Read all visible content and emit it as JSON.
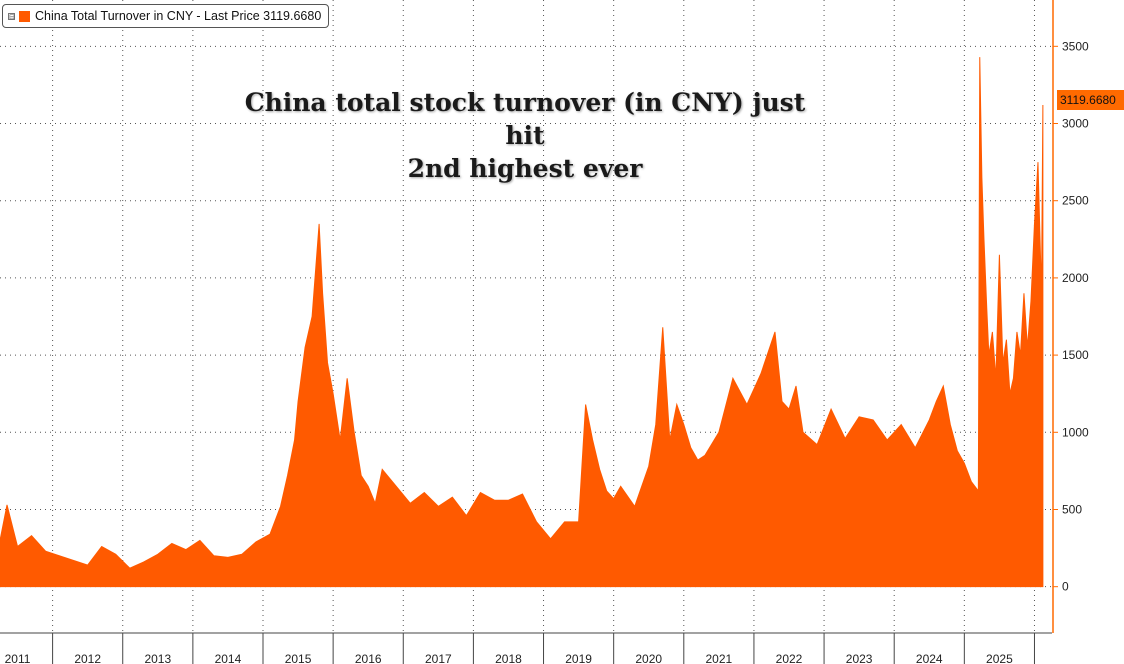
{
  "legend": {
    "label": "China Total Turnover in CNY - Last Price 3119.6680",
    "toggle": "⊟",
    "color": "#ff5a00"
  },
  "annotation": {
    "line1": "China total stock turnover (in CNY) just hit",
    "line2": "2nd highest ever"
  },
  "last_price_tag": "3119.6680",
  "colors": {
    "series": "#ff5a00",
    "axis": "#ff6a00",
    "grid": "#555555"
  },
  "chart_data": {
    "type": "area",
    "series": [
      {
        "name": "China Total Turnover in CNY",
        "color": "#ff5a00"
      }
    ],
    "x_labels": [
      "2011",
      "2012",
      "2013",
      "2014",
      "2015",
      "2016",
      "2017",
      "2018",
      "2019",
      "2020",
      "2021",
      "2022",
      "2023",
      "2024",
      "2025"
    ],
    "y_ticks": [
      0,
      500,
      1000,
      1500,
      2000,
      2500,
      3000,
      3500
    ],
    "y_range": [
      -300,
      3800
    ],
    "grid": true,
    "legend_position": "top-left",
    "last_value": 3119.668,
    "x": [
      2010.75,
      2010.85,
      2011.0,
      2011.2,
      2011.4,
      2011.6,
      2011.8,
      2012.0,
      2012.2,
      2012.4,
      2012.6,
      2012.8,
      2013.0,
      2013.2,
      2013.4,
      2013.6,
      2013.8,
      2014.0,
      2014.2,
      2014.4,
      2014.6,
      2014.75,
      2014.85,
      2014.95,
      2015.0,
      2015.1,
      2015.2,
      2015.3,
      2015.35,
      2015.42,
      2015.5,
      2015.6,
      2015.7,
      2015.8,
      2015.9,
      2016.0,
      2016.1,
      2016.2,
      2016.4,
      2016.6,
      2016.8,
      2017.0,
      2017.2,
      2017.4,
      2017.6,
      2017.8,
      2018.0,
      2018.2,
      2018.4,
      2018.6,
      2018.8,
      2019.0,
      2019.1,
      2019.2,
      2019.3,
      2019.4,
      2019.5,
      2019.6,
      2019.8,
      2020.0,
      2020.1,
      2020.2,
      2020.3,
      2020.4,
      2020.5,
      2020.6,
      2020.7,
      2020.8,
      2021.0,
      2021.2,
      2021.4,
      2021.6,
      2021.8,
      2021.9,
      2022.0,
      2022.1,
      2022.2,
      2022.4,
      2022.6,
      2022.8,
      2023.0,
      2023.2,
      2023.4,
      2023.6,
      2023.8,
      2024.0,
      2024.1,
      2024.2,
      2024.3,
      2024.4,
      2024.5,
      2024.6,
      2024.7,
      2024.72,
      2024.75,
      2024.78,
      2024.82,
      2024.85,
      2024.9,
      2024.95,
      2025.0,
      2025.05,
      2025.1,
      2025.15,
      2025.2,
      2025.25,
      2025.3,
      2025.35,
      2025.4,
      2025.45,
      2025.5,
      2025.55,
      2025.6,
      2025.62
    ],
    "values": [
      300,
      530,
      260,
      330,
      230,
      200,
      170,
      140,
      260,
      210,
      120,
      160,
      210,
      280,
      240,
      300,
      200,
      190,
      210,
      290,
      340,
      520,
      720,
      950,
      1200,
      1550,
      1750,
      2350,
      1900,
      1450,
      1250,
      950,
      1350,
      1000,
      720,
      650,
      540,
      760,
      650,
      540,
      610,
      520,
      580,
      460,
      610,
      560,
      560,
      600,
      420,
      310,
      420,
      420,
      1180,
      950,
      760,
      620,
      570,
      650,
      520,
      780,
      1050,
      1680,
      950,
      1180,
      1050,
      900,
      820,
      850,
      1000,
      1350,
      1180,
      1380,
      1650,
      1200,
      1150,
      1300,
      1000,
      920,
      1150,
      960,
      1100,
      1080,
      950,
      1050,
      900,
      1080,
      1200,
      1300,
      1050,
      880,
      800,
      680,
      620,
      3430,
      2650,
      2250,
      1800,
      1500,
      1650,
      1350,
      2150,
      1450,
      1600,
      1250,
      1350,
      1650,
      1500,
      1900,
      1550,
      1850,
      2350,
      2750,
      1900,
      3119.668
    ]
  }
}
